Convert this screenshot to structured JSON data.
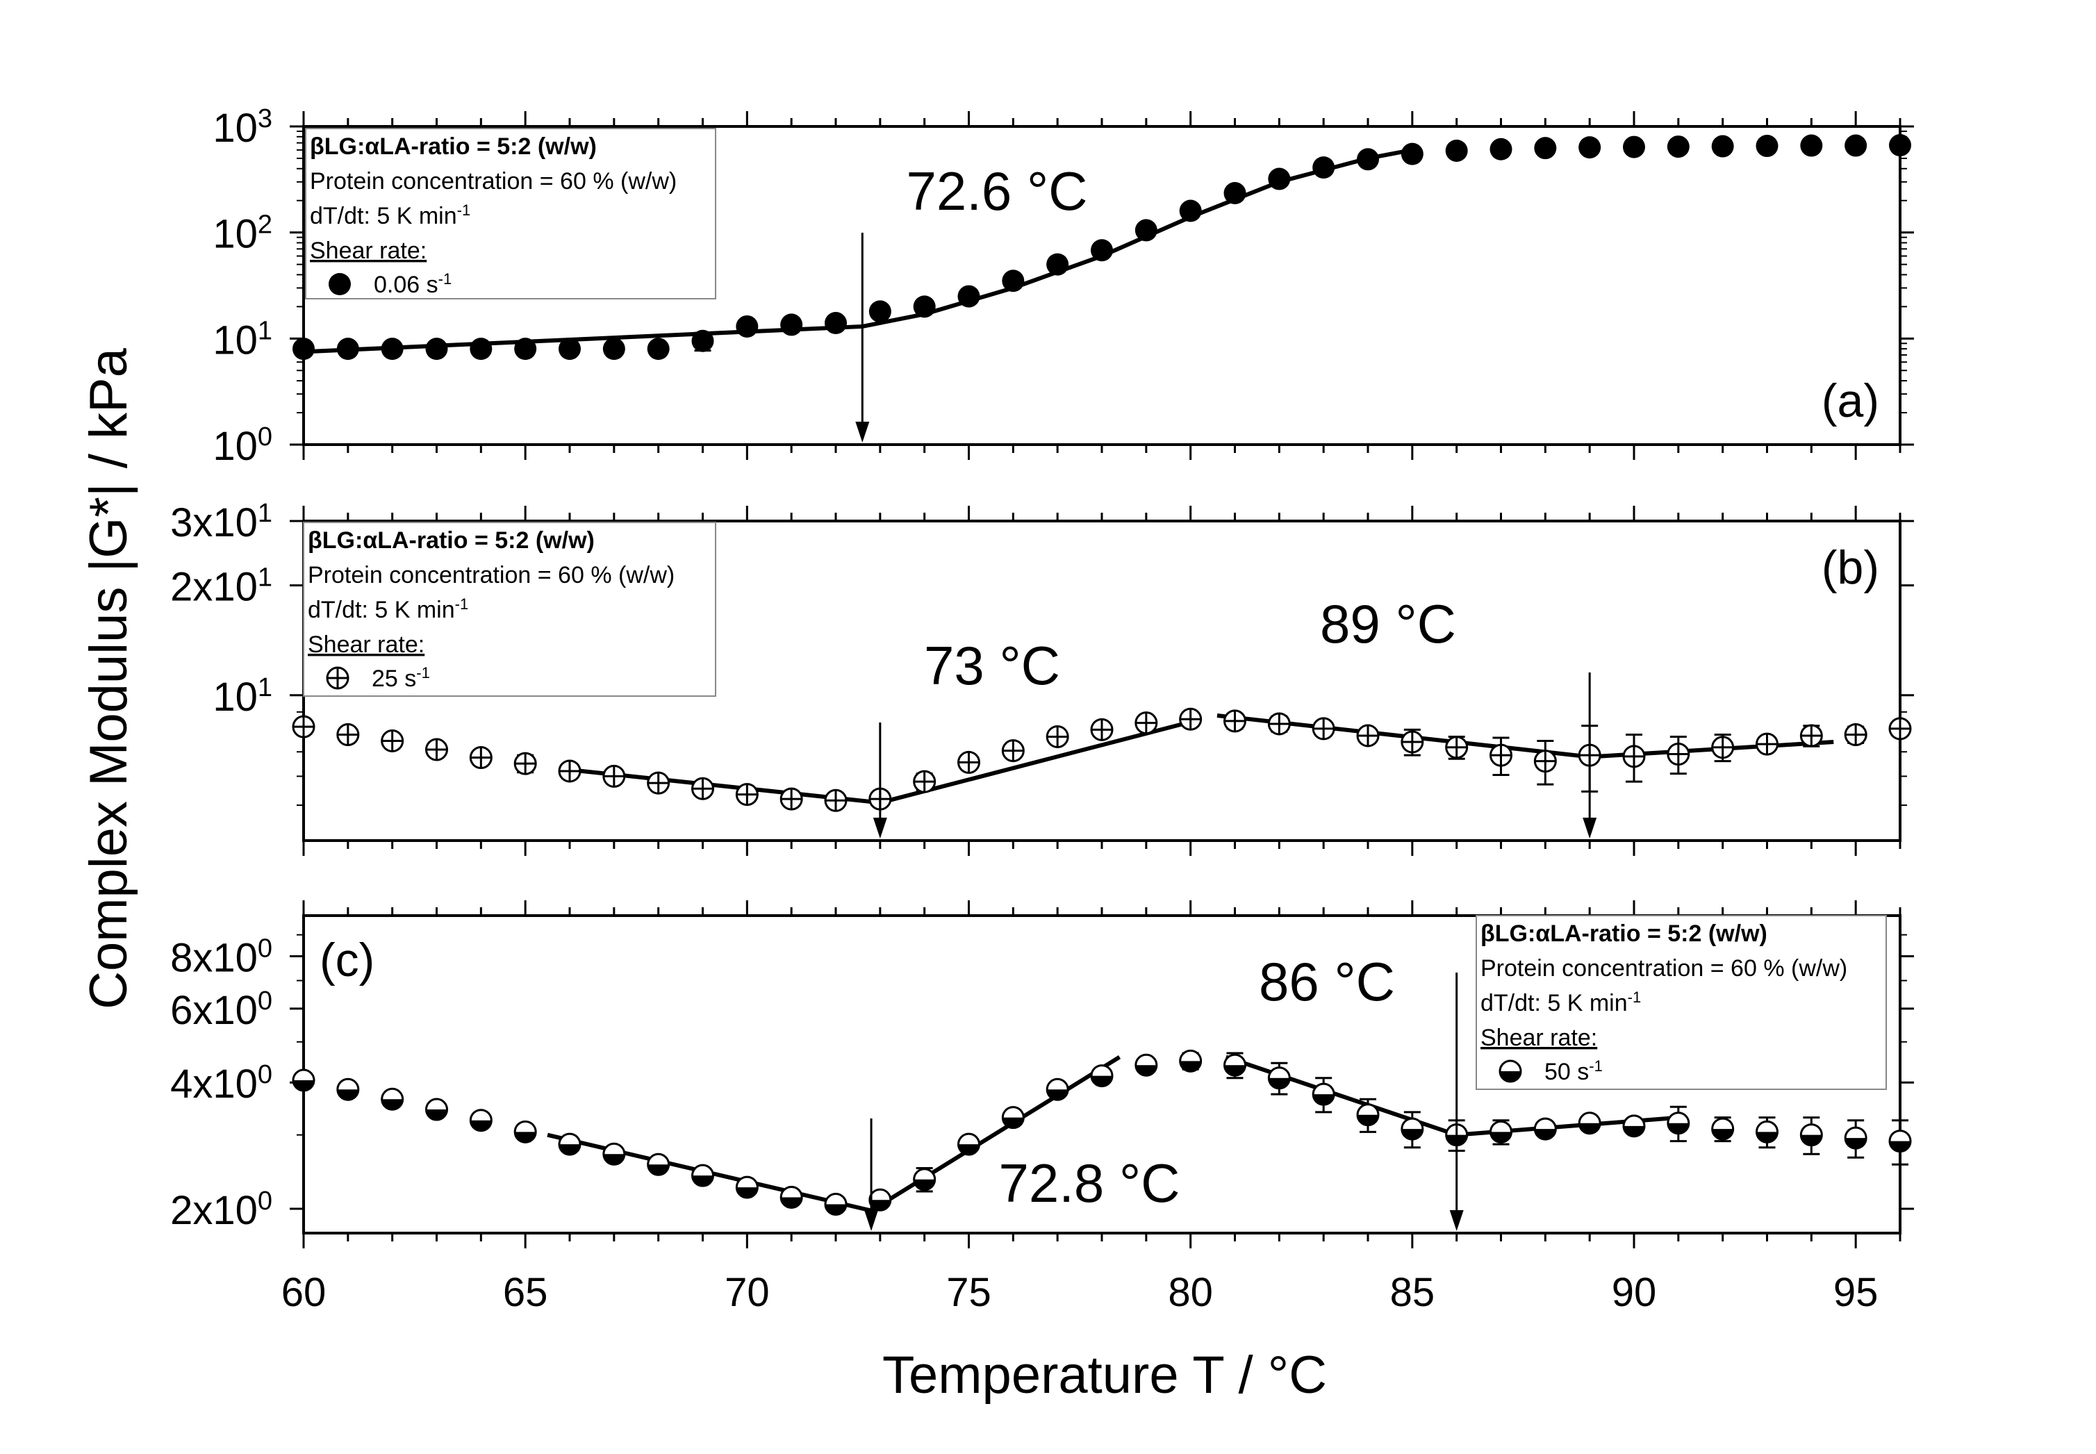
{
  "chart_data": {
    "type": "scatter",
    "xlabel": "Temperature T / °C",
    "ylabel": "Complex Modulus |G*| / kPa",
    "xlim": [
      60,
      96
    ],
    "x_ticks": [
      60,
      65,
      70,
      75,
      80,
      85,
      90,
      95
    ],
    "x_tick_labels": [
      "60",
      "65",
      "70",
      "75",
      "80",
      "85",
      "90",
      "95"
    ],
    "panels": [
      {
        "id": "a",
        "label": "(a)",
        "yscale": "log",
        "ylim": [
          1,
          1000
        ],
        "y_ticks": [
          1,
          10,
          100,
          1000
        ],
        "y_tick_labels": [
          {
            "base": "10",
            "exp": "0"
          },
          {
            "base": "10",
            "exp": "1"
          },
          {
            "base": "10",
            "exp": "2"
          },
          {
            "base": "10",
            "exp": "3"
          }
        ],
        "legend": {
          "title": "βLG:αLA-ratio = 5:2 (w/w)",
          "line2": "Protein concentration = 60 % (w/w)",
          "line3": {
            "text": "dT/dt: 5 K min",
            "sup": "-1"
          },
          "subtitle": "Shear rate:",
          "entry": {
            "text": "0.06 s",
            "sup": "-1"
          },
          "marker": "filled-circle",
          "position": "top-left"
        },
        "annotations": [
          {
            "text": "72.6 °C",
            "arrow_x": 72.6
          }
        ],
        "series": [
          {
            "name": "0.06 s-1",
            "marker": "filled-circle",
            "x": [
              60,
              61,
              62,
              63,
              64,
              65,
              66,
              67,
              68,
              69,
              70,
              71,
              72,
              73,
              74,
              75,
              76,
              77,
              78,
              79,
              80,
              81,
              82,
              83,
              84,
              85,
              86,
              87,
              88,
              89,
              90,
              91,
              92,
              93,
              94,
              95,
              96
            ],
            "y": [
              8,
              8,
              8,
              8,
              8,
              8,
              8,
              8,
              8,
              9.5,
              13,
              13.5,
              14,
              18,
              20,
              25,
              35,
              50,
              68,
              105,
              160,
              235,
              320,
              410,
              490,
              550,
              590,
              610,
              625,
              635,
              640,
              645,
              650,
              655,
              660,
              660,
              665
            ],
            "err": [
              0,
              0,
              0,
              0,
              0,
              0,
              0,
              0,
              0,
              1.8,
              0,
              0,
              0,
              0,
              0,
              0,
              0,
              0,
              0,
              0,
              0,
              0,
              0,
              0,
              0,
              0,
              0,
              0,
              0,
              0,
              0,
              0,
              0,
              0,
              0,
              0,
              0
            ]
          }
        ],
        "fits": [
          {
            "x": [
              60,
              72.6
            ],
            "y": [
              7.5,
              13
            ]
          },
          {
            "x": [
              72.6,
              74,
              76,
              78,
              80,
              82,
              84,
              85
            ],
            "y": [
              13,
              17,
              30,
              60,
              140,
              300,
              500,
              600
            ]
          }
        ]
      },
      {
        "id": "b",
        "label": "(b)",
        "yscale": "log",
        "ylim": [
          4,
          30
        ],
        "y_ticks": [
          10,
          20,
          30
        ],
        "y_tick_labels": [
          {
            "base": "10",
            "exp": "1"
          },
          {
            "base": "2x10",
            "exp": "1"
          },
          {
            "base": "3x10",
            "exp": "1"
          }
        ],
        "legend": {
          "title": "βLG:αLA-ratio = 5:2 (w/w)",
          "line2": "Protein concentration = 60 % (w/w)",
          "line3": {
            "text": "dT/dt: 5 K min",
            "sup": "-1"
          },
          "subtitle": "Shear rate:",
          "entry": {
            "text": "25 s",
            "sup": "-1"
          },
          "marker": "crossed-circle",
          "position": "top-left"
        },
        "annotations": [
          {
            "text": "73 °C",
            "arrow_x": 73
          },
          {
            "text": "89 °C",
            "arrow_x": 89
          }
        ],
        "series": [
          {
            "name": "25 s-1",
            "marker": "crossed-circle",
            "x": [
              60,
              61,
              62,
              63,
              64,
              65,
              66,
              67,
              68,
              69,
              70,
              71,
              72,
              73,
              74,
              75,
              76,
              77,
              78,
              79,
              80,
              81,
              82,
              83,
              84,
              85,
              86,
              87,
              88,
              89,
              90,
              91,
              92,
              93,
              94,
              95,
              96
            ],
            "y": [
              8.2,
              7.8,
              7.5,
              7.1,
              6.75,
              6.5,
              6.2,
              6.0,
              5.75,
              5.55,
              5.35,
              5.2,
              5.15,
              5.2,
              5.8,
              6.55,
              7.05,
              7.7,
              8.05,
              8.4,
              8.6,
              8.5,
              8.35,
              8.1,
              7.75,
              7.45,
              7.2,
              6.85,
              6.6,
              6.85,
              6.8,
              6.9,
              7.2,
              7.35,
              7.75,
              7.8,
              8.1
            ],
            "err": [
              0,
              0,
              0,
              0,
              0,
              0.35,
              0,
              0,
              0,
              0,
              0,
              0,
              0,
              0,
              0.3,
              0,
              0,
              0,
              0,
              0,
              0,
              0.4,
              0.4,
              0,
              0,
              0.6,
              0.5,
              0.8,
              0.9,
              1.4,
              1.0,
              0.8,
              0.6,
              0,
              0.5,
              0.4,
              0
            ]
          }
        ],
        "fits": [
          {
            "x": [
              66,
              73
            ],
            "y": [
              6.25,
              5.08
            ]
          },
          {
            "x": [
              73,
              80
            ],
            "y": [
              5.08,
              8.45
            ]
          },
          {
            "x": [
              80.6,
              89
            ],
            "y": [
              8.8,
              6.78
            ]
          },
          {
            "x": [
              89,
              94.5
            ],
            "y": [
              6.78,
              7.45
            ]
          }
        ]
      },
      {
        "id": "c",
        "label": "(c)",
        "yscale": "log",
        "ylim": [
          1.75,
          10
        ],
        "y_ticks": [
          2,
          4,
          6,
          8
        ],
        "y_tick_labels": [
          {
            "base": "2x10",
            "exp": "0"
          },
          {
            "base": "4x10",
            "exp": "0"
          },
          {
            "base": "6x10",
            "exp": "0"
          },
          {
            "base": "8x10",
            "exp": "0"
          }
        ],
        "legend": {
          "title": "βLG:αLA-ratio = 5:2 (w/w)",
          "line2": "Protein concentration = 60 % (w/w)",
          "line3": {
            "text": "dT/dt: 5 K min",
            "sup": "-1"
          },
          "subtitle": "Shear rate:",
          "entry": {
            "text": "50 s",
            "sup": "-1"
          },
          "marker": "half-filled-circle",
          "position": "top-right"
        },
        "annotations": [
          {
            "text": "72.8 °C",
            "arrow_x": 72.8
          },
          {
            "text": "86 °C",
            "arrow_x": 86
          }
        ],
        "series": [
          {
            "name": "50 s-1",
            "marker": "half-filled-circle",
            "x": [
              60,
              61,
              62,
              63,
              64,
              65,
              66,
              67,
              68,
              69,
              70,
              71,
              72,
              73,
              74,
              75,
              76,
              77,
              78,
              79,
              80,
              81,
              82,
              83,
              84,
              85,
              86,
              87,
              88,
              89,
              90,
              91,
              92,
              93,
              94,
              95,
              96
            ],
            "y": [
              4.05,
              3.85,
              3.65,
              3.45,
              3.25,
              3.05,
              2.85,
              2.7,
              2.55,
              2.4,
              2.25,
              2.13,
              2.05,
              2.1,
              2.35,
              2.85,
              3.3,
              3.85,
              4.15,
              4.4,
              4.5,
              4.4,
              4.1,
              3.75,
              3.35,
              3.1,
              3.0,
              3.05,
              3.1,
              3.2,
              3.15,
              3.2,
              3.1,
              3.05,
              3.0,
              2.95,
              2.9
            ],
            "err": [
              0,
              0,
              0,
              0,
              0,
              0,
              0,
              0,
              0,
              0,
              0,
              0,
              0,
              0,
              0.15,
              0,
              0,
              0,
              0.15,
              0,
              0.2,
              0.3,
              0.35,
              0.35,
              0.3,
              0.3,
              0.25,
              0.2,
              0,
              0,
              0,
              0.3,
              0.2,
              0.25,
              0.3,
              0.3,
              0.35
            ]
          }
        ],
        "fits": [
          {
            "x": [
              65.5,
              72.8
            ],
            "y": [
              3.0,
              1.98
            ]
          },
          {
            "x": [
              72.8,
              78.4
            ],
            "y": [
              1.98,
              4.6
            ]
          },
          {
            "x": [
              80.8,
              86
            ],
            "y": [
              4.6,
              3.0
            ]
          },
          {
            "x": [
              86,
              91
            ],
            "y": [
              3.0,
              3.3
            ]
          }
        ]
      }
    ]
  }
}
